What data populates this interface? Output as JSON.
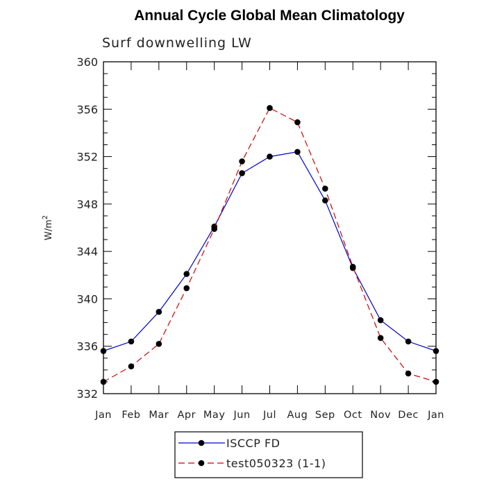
{
  "chart_data": {
    "type": "line",
    "title": "Annual Cycle Global Mean Climatology",
    "subtitle": "Surf downwelling LW",
    "ylabel": "W/m",
    "ylabel_superscript": "2",
    "ylim": [
      332,
      360
    ],
    "yticks": [
      "332",
      "336",
      "340",
      "344",
      "348",
      "352",
      "356",
      "360"
    ],
    "categories": [
      "Jan",
      "Feb",
      "Mar",
      "Apr",
      "May",
      "Jun",
      "Jul",
      "Aug",
      "Sep",
      "Oct",
      "Nov",
      "Dec",
      "Jan"
    ],
    "grid": false,
    "legend_position": "bottom-center",
    "series": [
      {
        "name": "ISCCP FD",
        "color": "#0000cc",
        "dash": "solid",
        "marker": "filled-circle",
        "values": [
          335.6,
          336.4,
          338.9,
          342.1,
          346.1,
          350.6,
          352.0,
          352.4,
          348.3,
          342.6,
          338.2,
          336.4,
          335.6
        ]
      },
      {
        "name": "test050323 (1-1)",
        "color": "#cc0000",
        "dash": "dashed",
        "marker": "filled-circle",
        "values": [
          333.0,
          334.3,
          336.2,
          340.9,
          345.9,
          351.6,
          356.1,
          354.9,
          349.3,
          342.7,
          336.7,
          333.7,
          333.0
        ]
      }
    ]
  }
}
